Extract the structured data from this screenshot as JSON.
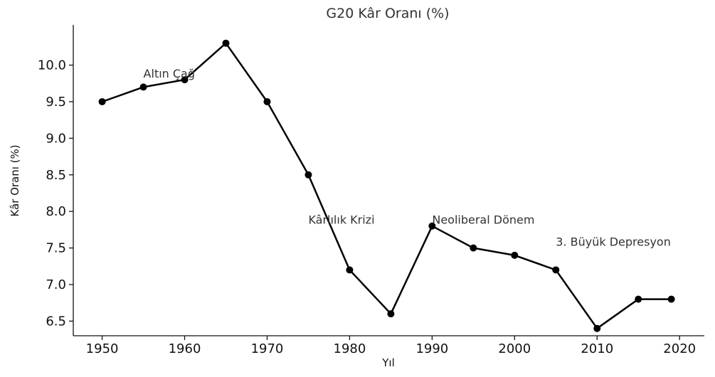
{
  "chart_data": {
    "type": "line",
    "title": "G20 Kâr Oranı (%)",
    "xlabel": "Yıl",
    "ylabel": "Kâr Oranı (%)",
    "xlim": [
      1946.5,
      2023
    ],
    "ylim": [
      6.3,
      10.55
    ],
    "x_ticks": [
      1950,
      1960,
      1970,
      1980,
      1990,
      2000,
      2010,
      2020
    ],
    "y_ticks": [
      6.5,
      7.0,
      7.5,
      8.0,
      8.5,
      9.0,
      9.5,
      10.0
    ],
    "y_tick_labels": [
      "6.5",
      "7.0",
      "7.5",
      "8.0",
      "8.5",
      "9.0",
      "9.5",
      "10.0"
    ],
    "grid": false,
    "series": [
      {
        "color": "#000000",
        "x": [
          1950,
          1955,
          1960,
          1965,
          1970,
          1975,
          1980,
          1985,
          1990,
          1995,
          2000,
          2005,
          2010,
          2015,
          2019
        ],
        "y": [
          9.5,
          9.7,
          9.8,
          10.3,
          9.5,
          8.5,
          7.2,
          6.6,
          7.8,
          7.5,
          7.4,
          7.2,
          6.4,
          6.8,
          6.8
        ]
      }
    ],
    "annotations": [
      {
        "text": "Altın Çağ",
        "x": 1955,
        "y": 9.83
      },
      {
        "text": "Kârlılık Krizi",
        "x": 1975,
        "y": 7.83
      },
      {
        "text": "Neoliberal Dönem",
        "x": 1990,
        "y": 7.83
      },
      {
        "text": "3. Büyük Depresyon",
        "x": 2005,
        "y": 7.53
      }
    ]
  }
}
